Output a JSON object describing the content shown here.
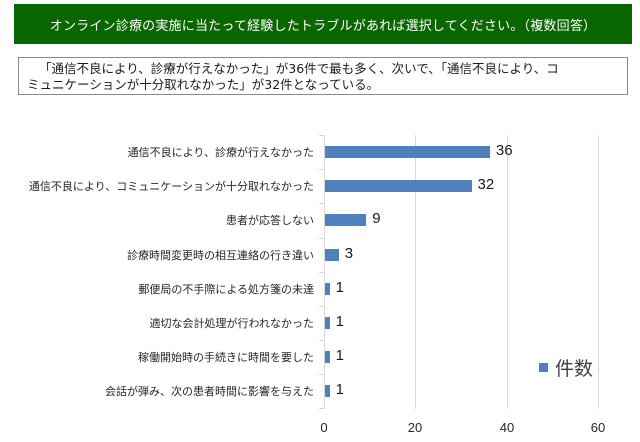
{
  "header": {
    "title": "オンライン診療の実施に当たって経験したトラブルがあれば選択してください。（複数回答）",
    "bg_color": "#0a6600"
  },
  "summary": {
    "line1": "「通信不良により、診療が行えなかった」が36件で最も多く、次いで、「通信不良により、コ",
    "line2": "ミュニケーションが十分取れなかった」が32件となっている。"
  },
  "legend": {
    "label": "件数",
    "color": "#4f81bd"
  },
  "chart_data": {
    "type": "bar",
    "orientation": "horizontal",
    "title": "オンライン診療の実施に当たって経験したトラブルがあれば選択してください。（複数回答）",
    "xlabel": "",
    "ylabel": "",
    "xlim": [
      0,
      60
    ],
    "x_ticks": [
      "0",
      "20",
      "40",
      "60"
    ],
    "grid": true,
    "legend_position": "right",
    "categories": [
      "通信不良により、診療が行えなかった",
      "通信不良により、コミュニケーションが十分取れなかった",
      "患者が応答しない",
      "診療時間変更時の相互連絡の行き違い",
      "郵便局の不手際による処方箋の未達",
      "適切な会計処理が行われなかった",
      "稼働開始時の手続きに時間を要した",
      "会話が弾み、次の患者時間に影響を与えた"
    ],
    "series": [
      {
        "name": "件数",
        "color": "#4f81bd",
        "values": [
          36,
          32,
          9,
          3,
          1,
          1,
          1,
          1
        ]
      }
    ],
    "value_labels": [
      "36",
      "32",
      "9",
      "3",
      "1",
      "1",
      "1",
      "1"
    ]
  }
}
